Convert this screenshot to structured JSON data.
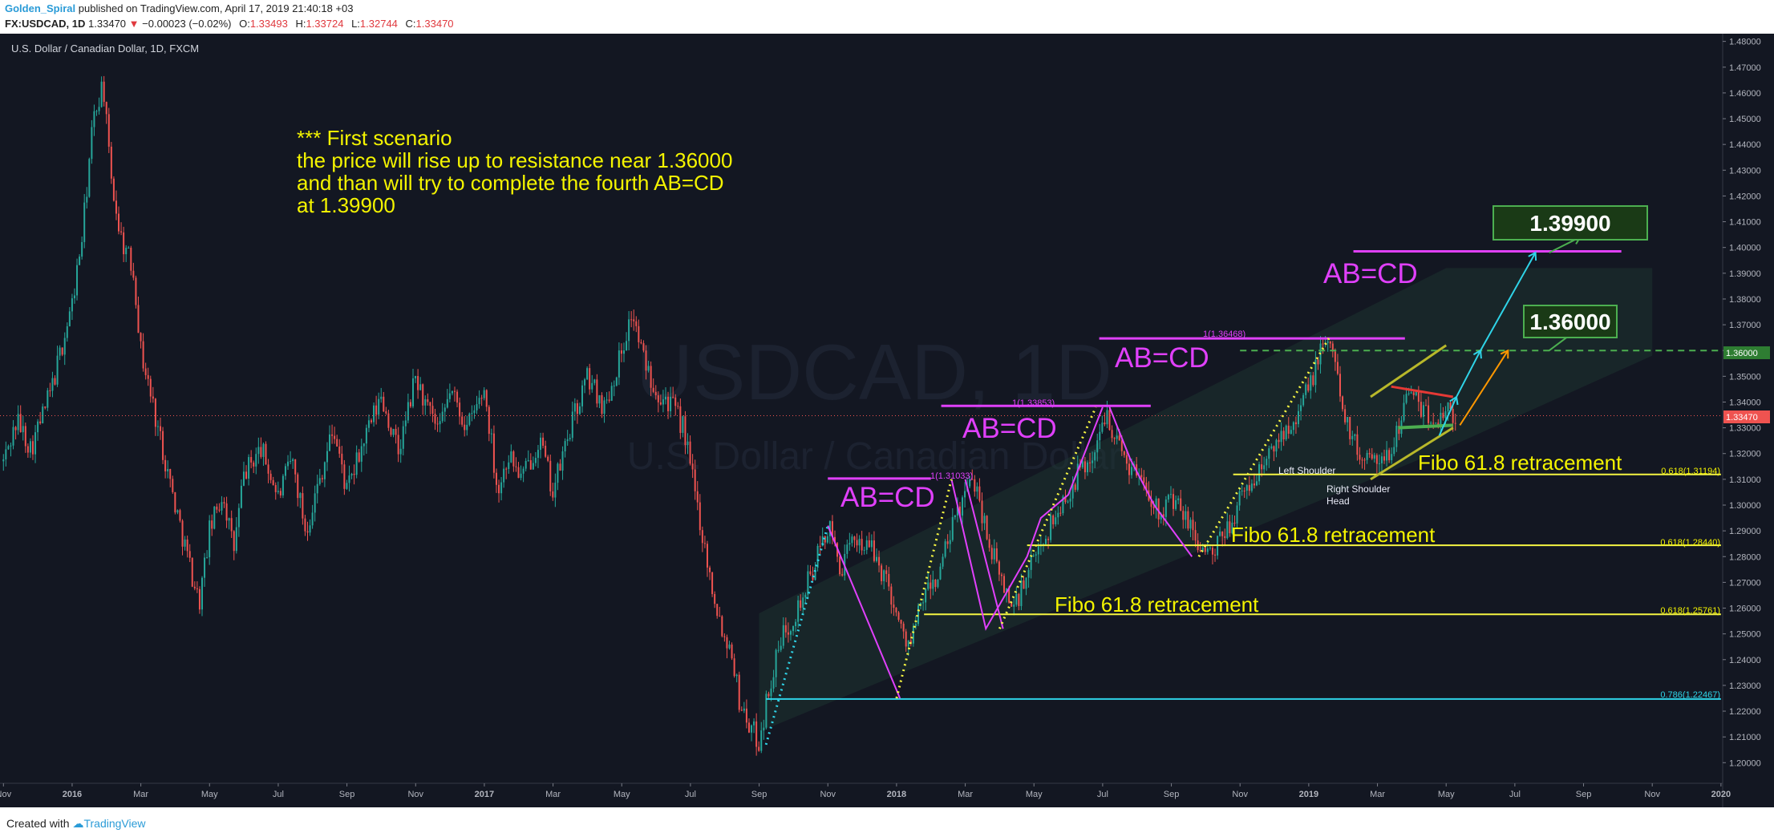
{
  "header": {
    "author": "Golden_Spiral",
    "published": "published on TradingView.com, April 17, 2019 21:40:18 +03",
    "symbol": "FX:USDCAD, 1D",
    "last": "1.33470",
    "change_arrow": "▼",
    "change": "−0.00023 (−0.02%)",
    "o_label": "O:",
    "o_value": "1.33493",
    "h_label": "H:",
    "h_value": "1.33724",
    "l_label": "L:",
    "l_value": "1.32744",
    "c_label": "C:",
    "c_value": "1.33470"
  },
  "footer": {
    "created": "Created with",
    "brand": "TradingView"
  },
  "colors": {
    "background": "#131722",
    "up": "#26a69a",
    "down": "#ef5350",
    "magenta": "#e040fb",
    "yellow": "#f5f542",
    "cyan": "#2fd4e8",
    "green_dash": "#4caf50",
    "text_yellow": "#f4f400"
  },
  "chart_data": {
    "type": "candlestick",
    "title": "U.S. Dollar / Canadian Dollar, 1D, FXCM",
    "watermark": "USDCAD, 1D",
    "watermark_sub": "U.S. Dollar / Canadian Dollar",
    "ylim": [
      1.192,
      1.483
    ],
    "y_ticks": [
      "1.48000",
      "1.47000",
      "1.46000",
      "1.45000",
      "1.44000",
      "1.43000",
      "1.42000",
      "1.41000",
      "1.40000",
      "1.39000",
      "1.38000",
      "1.37000",
      "1.36000",
      "1.35000",
      "1.34000",
      "1.33000",
      "1.32000",
      "1.31000",
      "1.30000",
      "1.29000",
      "1.28000",
      "1.27000",
      "1.26000",
      "1.25000",
      "1.24000",
      "1.23000",
      "1.22000",
      "1.21000",
      "1.20000"
    ],
    "x_ticks": [
      "Nov",
      "2016",
      "Mar",
      "May",
      "Jul",
      "Sep",
      "Nov",
      "2017",
      "Mar",
      "May",
      "Jul",
      "Sep",
      "Nov",
      "2018",
      "Mar",
      "May",
      "Jul",
      "Sep",
      "Nov",
      "2019",
      "Mar",
      "May",
      "Jul",
      "Sep",
      "Nov",
      "2020"
    ],
    "x_tick_months": [
      -2,
      0,
      2,
      4,
      6,
      8,
      10,
      12,
      14,
      16,
      18,
      20,
      22,
      24,
      26,
      28,
      30,
      32,
      34,
      36,
      38,
      40,
      42,
      44,
      46,
      48
    ],
    "last_price": 1.3347,
    "last_price_label": "1.33470",
    "price_path": [
      [
        -2.0,
        1.317
      ],
      [
        -1.6,
        1.333
      ],
      [
        -1.2,
        1.322
      ],
      [
        -0.6,
        1.345
      ],
      [
        0.0,
        1.378
      ],
      [
        0.3,
        1.405
      ],
      [
        0.6,
        1.448
      ],
      [
        0.9,
        1.465
      ],
      [
        1.1,
        1.43
      ],
      [
        1.4,
        1.405
      ],
      [
        1.8,
        1.39
      ],
      [
        2.0,
        1.36
      ],
      [
        2.5,
        1.33
      ],
      [
        3.0,
        1.3
      ],
      [
        3.4,
        1.278
      ],
      [
        3.7,
        1.262
      ],
      [
        4.0,
        1.29
      ],
      [
        4.4,
        1.305
      ],
      [
        4.7,
        1.282
      ],
      [
        5.0,
        1.312
      ],
      [
        5.5,
        1.322
      ],
      [
        6.0,
        1.303
      ],
      [
        6.4,
        1.318
      ],
      [
        6.8,
        1.29
      ],
      [
        7.2,
        1.31
      ],
      [
        7.6,
        1.33
      ],
      [
        8.0,
        1.305
      ],
      [
        8.5,
        1.325
      ],
      [
        9.0,
        1.342
      ],
      [
        9.5,
        1.32
      ],
      [
        10.0,
        1.35
      ],
      [
        10.3,
        1.338
      ],
      [
        10.7,
        1.328
      ],
      [
        11.0,
        1.345
      ],
      [
        11.5,
        1.33
      ],
      [
        12.0,
        1.345
      ],
      [
        12.4,
        1.305
      ],
      [
        12.7,
        1.32
      ],
      [
        13.1,
        1.31
      ],
      [
        13.6,
        1.326
      ],
      [
        14.0,
        1.305
      ],
      [
        14.5,
        1.33
      ],
      [
        15.0,
        1.35
      ],
      [
        15.5,
        1.338
      ],
      [
        16.0,
        1.36
      ],
      [
        16.3,
        1.375
      ],
      [
        16.6,
        1.358
      ],
      [
        17.0,
        1.345
      ],
      [
        17.4,
        1.34
      ],
      [
        17.8,
        1.33
      ],
      [
        18.2,
        1.3
      ],
      [
        18.6,
        1.27
      ],
      [
        19.0,
        1.248
      ],
      [
        19.2,
        1.245
      ],
      [
        19.4,
        1.225
      ],
      [
        19.7,
        1.215
      ],
      [
        20.0,
        1.208
      ],
      [
        20.3,
        1.23
      ],
      [
        20.7,
        1.25
      ],
      [
        21.2,
        1.262
      ],
      [
        21.7,
        1.28
      ],
      [
        22.0,
        1.292
      ],
      [
        22.4,
        1.275
      ],
      [
        22.8,
        1.288
      ],
      [
        23.3,
        1.282
      ],
      [
        23.8,
        1.268
      ],
      [
        24.1,
        1.252
      ],
      [
        24.4,
        1.246
      ],
      [
        24.8,
        1.265
      ],
      [
        25.2,
        1.272
      ],
      [
        25.6,
        1.29
      ],
      [
        26.0,
        1.305
      ],
      [
        26.3,
        1.31
      ],
      [
        26.6,
        1.29
      ],
      [
        27.0,
        1.272
      ],
      [
        27.4,
        1.26
      ],
      [
        27.8,
        1.272
      ],
      [
        28.2,
        1.285
      ],
      [
        28.6,
        1.295
      ],
      [
        29.0,
        1.305
      ],
      [
        29.4,
        1.315
      ],
      [
        29.8,
        1.32
      ],
      [
        30.1,
        1.338
      ],
      [
        30.4,
        1.325
      ],
      [
        30.8,
        1.315
      ],
      [
        31.2,
        1.31
      ],
      [
        31.6,
        1.298
      ],
      [
        32.0,
        1.302
      ],
      [
        32.4,
        1.295
      ],
      [
        32.8,
        1.285
      ],
      [
        33.2,
        1.28
      ],
      [
        33.6,
        1.29
      ],
      [
        34.0,
        1.302
      ],
      [
        34.4,
        1.31
      ],
      [
        34.8,
        1.318
      ],
      [
        35.2,
        1.328
      ],
      [
        35.6,
        1.335
      ],
      [
        36.0,
        1.345
      ],
      [
        36.3,
        1.358
      ],
      [
        36.6,
        1.365
      ],
      [
        36.9,
        1.345
      ],
      [
        37.2,
        1.328
      ],
      [
        37.5,
        1.318
      ],
      [
        37.9,
        1.322
      ],
      [
        38.2,
        1.315
      ],
      [
        38.6,
        1.33
      ],
      [
        38.9,
        1.346
      ],
      [
        39.2,
        1.338
      ],
      [
        39.6,
        1.332
      ],
      [
        40.0,
        1.338
      ],
      [
        40.3,
        1.3347
      ]
    ],
    "annotations": {
      "scenario_line1": "*** First scenario",
      "scenario_line2": "the price will rise up to resistance near 1.36000",
      "scenario_line3": "and than will try to complete the  fourth AB=CD",
      "scenario_line4": "at 1.39900",
      "abcd_1": "AB=CD",
      "abcd_1_fib": "1(1.31033)",
      "abcd_2": "AB=CD",
      "abcd_2_fib": "1(1.33853)",
      "abcd_3": "AB=CD",
      "abcd_3_fib": "1(1.36468)",
      "abcd_4": "AB=CD",
      "fibo_1": "Fibo 61.8 retracement",
      "fibo_2": "Fibo 61.8 retracement",
      "fibo_3": "Fibo 61.8 retracement",
      "fib_level_a": "0.618(1.25761)",
      "fib_level_b": "0.618(1.28440)",
      "fib_level_c": "0.618(1.31194)",
      "fib_level_d": "0.786(1.22467)",
      "target_1": "1.36000",
      "target_2": "1.39900",
      "left_shoulder": "Left Shoulder",
      "right_shoulder": "Right Shoulder",
      "head": "Head",
      "axis_resistance": "1.36000"
    }
  }
}
